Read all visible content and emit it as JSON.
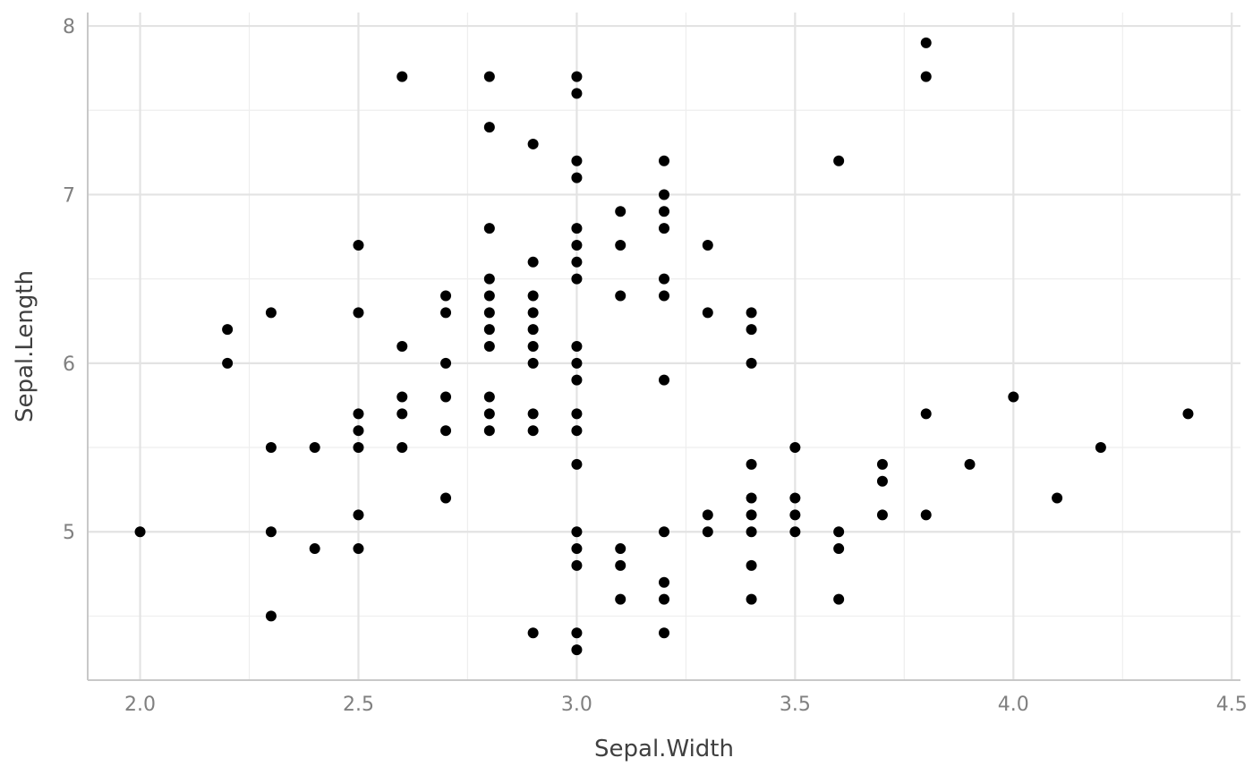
{
  "chart_data": {
    "type": "scatter",
    "xlabel": "Sepal.Width",
    "ylabel": "Sepal.Length",
    "xlim": [
      1.88,
      4.52
    ],
    "ylim": [
      4.12,
      8.08
    ],
    "x_ticks": [
      2.0,
      2.5,
      3.0,
      3.5,
      4.0,
      4.5
    ],
    "x_tick_labels": [
      "2.0",
      "2.5",
      "3.0",
      "3.5",
      "4.0",
      "4.5"
    ],
    "y_ticks": [
      5,
      6,
      7,
      8
    ],
    "y_tick_labels": [
      "5",
      "6",
      "7",
      "8"
    ],
    "x_minor_ticks": [
      2.25,
      2.75,
      3.25,
      3.75,
      4.25
    ],
    "y_minor_ticks": [
      4.5,
      5.5,
      6.5,
      7.5
    ],
    "grid": true,
    "point_color": "#000000",
    "points": [
      [
        2.0,
        5.0
      ],
      [
        2.2,
        6.2
      ],
      [
        2.2,
        6.0
      ],
      [
        2.3,
        6.3
      ],
      [
        2.3,
        5.5
      ],
      [
        2.3,
        5.0
      ],
      [
        2.3,
        4.5
      ],
      [
        2.4,
        5.5
      ],
      [
        2.4,
        4.9
      ],
      [
        2.5,
        6.7
      ],
      [
        2.5,
        6.3
      ],
      [
        2.5,
        5.7
      ],
      [
        2.5,
        5.6
      ],
      [
        2.5,
        5.5
      ],
      [
        2.5,
        5.1
      ],
      [
        2.5,
        4.9
      ],
      [
        2.6,
        7.7
      ],
      [
        2.6,
        6.1
      ],
      [
        2.6,
        5.8
      ],
      [
        2.6,
        5.7
      ],
      [
        2.6,
        5.5
      ],
      [
        2.7,
        6.4
      ],
      [
        2.7,
        6.3
      ],
      [
        2.7,
        6.0
      ],
      [
        2.7,
        5.8
      ],
      [
        2.7,
        5.6
      ],
      [
        2.7,
        5.2
      ],
      [
        2.8,
        7.7
      ],
      [
        2.8,
        7.4
      ],
      [
        2.8,
        6.8
      ],
      [
        2.8,
        6.5
      ],
      [
        2.8,
        6.4
      ],
      [
        2.8,
        6.3
      ],
      [
        2.8,
        6.2
      ],
      [
        2.8,
        6.1
      ],
      [
        2.8,
        5.8
      ],
      [
        2.8,
        5.7
      ],
      [
        2.8,
        5.6
      ],
      [
        2.9,
        7.3
      ],
      [
        2.9,
        6.6
      ],
      [
        2.9,
        6.4
      ],
      [
        2.9,
        6.3
      ],
      [
        2.9,
        6.2
      ],
      [
        2.9,
        6.1
      ],
      [
        2.9,
        6.0
      ],
      [
        2.9,
        5.7
      ],
      [
        2.9,
        5.6
      ],
      [
        2.9,
        4.4
      ],
      [
        3.0,
        7.7
      ],
      [
        3.0,
        7.6
      ],
      [
        3.0,
        7.2
      ],
      [
        3.0,
        7.1
      ],
      [
        3.0,
        6.8
      ],
      [
        3.0,
        6.7
      ],
      [
        3.0,
        6.6
      ],
      [
        3.0,
        6.5
      ],
      [
        3.0,
        6.1
      ],
      [
        3.0,
        6.0
      ],
      [
        3.0,
        5.9
      ],
      [
        3.0,
        5.7
      ],
      [
        3.0,
        5.6
      ],
      [
        3.0,
        5.4
      ],
      [
        3.0,
        5.0
      ],
      [
        3.0,
        4.9
      ],
      [
        3.0,
        4.8
      ],
      [
        3.0,
        4.4
      ],
      [
        3.0,
        4.3
      ],
      [
        3.1,
        6.9
      ],
      [
        3.1,
        6.7
      ],
      [
        3.1,
        6.4
      ],
      [
        3.1,
        4.9
      ],
      [
        3.1,
        4.8
      ],
      [
        3.1,
        4.6
      ],
      [
        3.2,
        7.2
      ],
      [
        3.2,
        7.0
      ],
      [
        3.2,
        6.9
      ],
      [
        3.2,
        6.8
      ],
      [
        3.2,
        6.5
      ],
      [
        3.2,
        6.4
      ],
      [
        3.2,
        5.9
      ],
      [
        3.2,
        5.0
      ],
      [
        3.2,
        4.7
      ],
      [
        3.2,
        4.6
      ],
      [
        3.2,
        4.4
      ],
      [
        3.3,
        6.7
      ],
      [
        3.3,
        6.3
      ],
      [
        3.3,
        5.1
      ],
      [
        3.3,
        5.0
      ],
      [
        3.4,
        6.3
      ],
      [
        3.4,
        6.2
      ],
      [
        3.4,
        6.0
      ],
      [
        3.4,
        5.4
      ],
      [
        3.4,
        5.2
      ],
      [
        3.4,
        5.1
      ],
      [
        3.4,
        5.0
      ],
      [
        3.4,
        4.8
      ],
      [
        3.4,
        4.6
      ],
      [
        3.5,
        5.5
      ],
      [
        3.5,
        5.2
      ],
      [
        3.5,
        5.1
      ],
      [
        3.5,
        5.0
      ],
      [
        3.6,
        7.2
      ],
      [
        3.6,
        5.0
      ],
      [
        3.6,
        4.9
      ],
      [
        3.6,
        4.6
      ],
      [
        3.7,
        5.4
      ],
      [
        3.7,
        5.3
      ],
      [
        3.7,
        5.1
      ],
      [
        3.8,
        7.9
      ],
      [
        3.8,
        7.7
      ],
      [
        3.8,
        5.7
      ],
      [
        3.8,
        5.1
      ],
      [
        3.9,
        5.4
      ],
      [
        4.0,
        5.8
      ],
      [
        4.1,
        5.2
      ],
      [
        4.2,
        5.5
      ],
      [
        4.4,
        5.7
      ]
    ]
  }
}
